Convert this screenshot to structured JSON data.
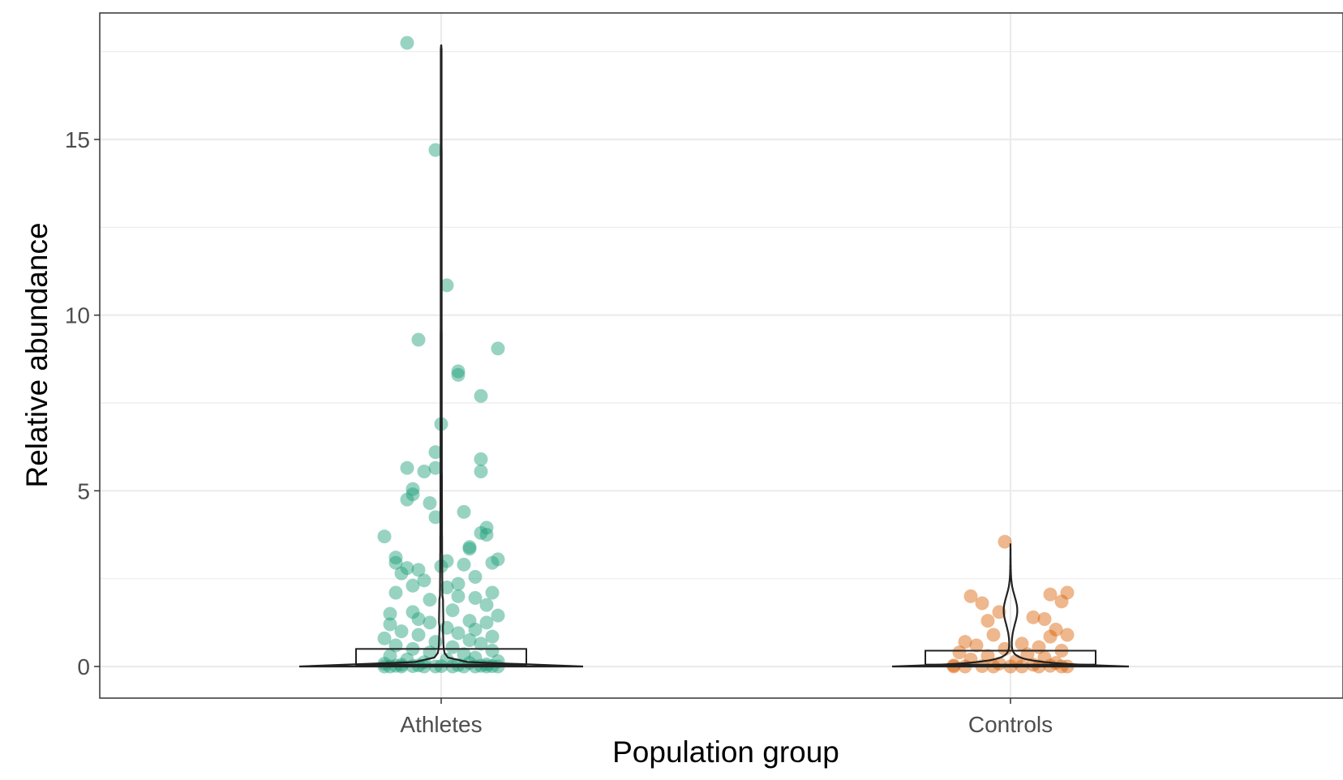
{
  "chart_data": {
    "type": "scatter",
    "title": "",
    "xlabel": "Population group",
    "ylabel": "Relative abundance",
    "categories": [
      "Athletes",
      "Controls"
    ],
    "ylim": [
      -0.9,
      18.6
    ],
    "yticks": [
      0,
      5,
      10,
      15
    ],
    "ytick_labels": [
      "0",
      "5",
      "10",
      "15"
    ],
    "grid": true,
    "legend": "none",
    "overlays": [
      "violin",
      "boxplot"
    ],
    "colors": {
      "Athletes": "#1b9e77",
      "Controls": "#d95f02",
      "outline": "#222222",
      "grid": "#ebebeb",
      "panel_border": "#333333"
    },
    "boxplot": {
      "Athletes": {
        "q1": 0.0,
        "median": 0.05,
        "q3": 0.5
      },
      "Controls": {
        "q1": 0.0,
        "median": 0.05,
        "q3": 0.45
      }
    },
    "violin": {
      "Athletes": {
        "max": 17.7,
        "halfwidth": 0.25
      },
      "Controls": {
        "max": 3.5,
        "halfwidth": 0.22
      }
    },
    "series": [
      {
        "name": "Athletes",
        "points": [
          [
            -0.06,
            17.75
          ],
          [
            -0.01,
            14.7
          ],
          [
            0.01,
            10.85
          ],
          [
            -0.04,
            9.3
          ],
          [
            0.1,
            9.05
          ],
          [
            0.03,
            8.4
          ],
          [
            0.03,
            8.3
          ],
          [
            0.07,
            7.7
          ],
          [
            0.0,
            6.9
          ],
          [
            -0.01,
            6.1
          ],
          [
            0.07,
            5.9
          ],
          [
            0.07,
            5.55
          ],
          [
            -0.06,
            5.65
          ],
          [
            -0.03,
            5.55
          ],
          [
            -0.01,
            5.65
          ],
          [
            -0.05,
            5.05
          ],
          [
            -0.05,
            4.9
          ],
          [
            -0.06,
            4.75
          ],
          [
            -0.02,
            4.65
          ],
          [
            -0.01,
            4.25
          ],
          [
            0.04,
            4.4
          ],
          [
            0.08,
            3.95
          ],
          [
            0.07,
            3.8
          ],
          [
            0.08,
            3.75
          ],
          [
            -0.1,
            3.7
          ],
          [
            0.05,
            3.4
          ],
          [
            0.05,
            3.35
          ],
          [
            -0.08,
            3.1
          ],
          [
            0.1,
            3.05
          ],
          [
            0.09,
            2.95
          ],
          [
            -0.08,
            2.95
          ],
          [
            0.01,
            3.0
          ],
          [
            0.04,
            2.9
          ],
          [
            -0.06,
            2.8
          ],
          [
            -0.04,
            2.75
          ],
          [
            0.0,
            2.85
          ],
          [
            -0.07,
            2.65
          ],
          [
            0.06,
            2.55
          ],
          [
            -0.03,
            2.45
          ],
          [
            0.03,
            2.35
          ],
          [
            -0.05,
            2.3
          ],
          [
            0.01,
            2.25
          ],
          [
            -0.08,
            2.1
          ],
          [
            0.09,
            2.1
          ],
          [
            0.03,
            2.0
          ],
          [
            0.06,
            1.95
          ],
          [
            -0.02,
            1.9
          ],
          [
            0.08,
            1.75
          ],
          [
            -0.09,
            1.5
          ],
          [
            -0.05,
            1.55
          ],
          [
            0.02,
            1.6
          ],
          [
            0.1,
            1.45
          ],
          [
            -0.04,
            1.35
          ],
          [
            0.05,
            1.3
          ],
          [
            0.08,
            1.25
          ],
          [
            -0.09,
            1.2
          ],
          [
            -0.02,
            1.25
          ],
          [
            0.01,
            1.1
          ],
          [
            0.06,
            1.05
          ],
          [
            -0.07,
            1.0
          ],
          [
            0.03,
            0.95
          ],
          [
            -0.04,
            0.9
          ],
          [
            0.09,
            0.85
          ],
          [
            -0.1,
            0.8
          ],
          [
            0.05,
            0.75
          ],
          [
            -0.01,
            0.7
          ],
          [
            0.07,
            0.65
          ],
          [
            -0.08,
            0.6
          ],
          [
            0.02,
            0.55
          ],
          [
            -0.05,
            0.5
          ],
          [
            0.09,
            0.45
          ],
          [
            -0.02,
            0.4
          ],
          [
            0.04,
            0.35
          ],
          [
            -0.09,
            0.3
          ],
          [
            0.06,
            0.25
          ],
          [
            -0.06,
            0.2
          ],
          [
            0.01,
            0.2
          ],
          [
            0.1,
            0.15
          ],
          [
            -0.03,
            0.12
          ],
          [
            0.05,
            0.1
          ],
          [
            -0.1,
            0.08
          ],
          [
            0.08,
            0.06
          ],
          [
            -0.07,
            0.05
          ],
          [
            0.03,
            0.04
          ],
          [
            -0.04,
            0.03
          ],
          [
            0.07,
            0.02
          ],
          [
            -0.08,
            0.02
          ],
          [
            0.0,
            0.01
          ],
          [
            0.09,
            0.01
          ],
          [
            -0.05,
            0.01
          ],
          [
            0.04,
            0.0
          ],
          [
            -0.1,
            0.0
          ],
          [
            -0.07,
            0.0
          ],
          [
            -0.03,
            0.0
          ],
          [
            0.02,
            0.0
          ],
          [
            0.06,
            0.0
          ],
          [
            0.1,
            0.0
          ],
          [
            -0.09,
            0.0
          ],
          [
            0.08,
            0.0
          ],
          [
            -0.01,
            0.0
          ]
        ]
      },
      {
        "name": "Controls",
        "points": [
          [
            -0.01,
            3.55
          ],
          [
            0.1,
            2.1
          ],
          [
            0.07,
            2.05
          ],
          [
            -0.07,
            2.0
          ],
          [
            0.09,
            1.85
          ],
          [
            -0.05,
            1.8
          ],
          [
            -0.02,
            1.55
          ],
          [
            0.04,
            1.4
          ],
          [
            0.06,
            1.35
          ],
          [
            -0.04,
            1.3
          ],
          [
            0.08,
            1.05
          ],
          [
            0.1,
            0.9
          ],
          [
            -0.03,
            0.9
          ],
          [
            0.07,
            0.85
          ],
          [
            -0.08,
            0.7
          ],
          [
            0.02,
            0.65
          ],
          [
            -0.06,
            0.6
          ],
          [
            0.05,
            0.55
          ],
          [
            -0.01,
            0.5
          ],
          [
            0.09,
            0.45
          ],
          [
            -0.09,
            0.4
          ],
          [
            0.03,
            0.35
          ],
          [
            -0.04,
            0.3
          ],
          [
            0.06,
            0.25
          ],
          [
            -0.07,
            0.2
          ],
          [
            0.01,
            0.15
          ],
          [
            0.08,
            0.1
          ],
          [
            -0.02,
            0.08
          ],
          [
            0.04,
            0.05
          ],
          [
            -0.1,
            0.03
          ],
          [
            0.07,
            0.02
          ],
          [
            -0.05,
            0.01
          ],
          [
            0.0,
            0.0
          ],
          [
            0.1,
            0.0
          ],
          [
            -0.08,
            0.0
          ],
          [
            0.05,
            0.0
          ],
          [
            -0.03,
            0.0
          ],
          [
            0.09,
            0.0
          ],
          [
            -0.1,
            0.0
          ],
          [
            0.02,
            0.0
          ]
        ]
      }
    ]
  }
}
